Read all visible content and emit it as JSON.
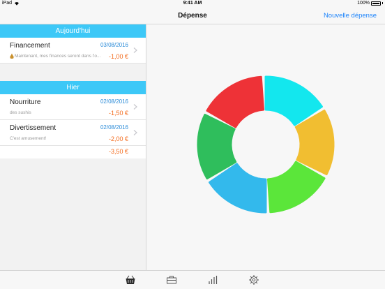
{
  "status_bar": {
    "device": "iPad",
    "time": "9:41 AM",
    "battery": "100%"
  },
  "nav": {
    "title": "Dépense",
    "action": "Nouvelle dépense"
  },
  "sections": [
    {
      "header": "Aujourd'hui",
      "rows": [
        {
          "title": "Financement",
          "date": "03/08/2016",
          "subtitle": "Maintenant, mes finances seront dans l'o...",
          "amount": "-1,00 €"
        }
      ]
    },
    {
      "header": "Hier",
      "rows": [
        {
          "title": "Nourriture",
          "date": "02/08/2016",
          "subtitle": "des sushis",
          "amount": "-1,50 €"
        },
        {
          "title": "Divertissement",
          "date": "02/08/2016",
          "subtitle": "C'est amusement!",
          "amount": "-2,00 €"
        }
      ],
      "total": "-3,50 €"
    }
  ],
  "donut": {
    "segments": [
      {
        "color": "#ee3237"
      },
      {
        "color": "#13e7ee"
      },
      {
        "color": "#f1be31"
      },
      {
        "color": "#5be63a"
      },
      {
        "color": "#33b9ec"
      },
      {
        "color": "#2fbe5c"
      }
    ]
  },
  "tabs": [
    {
      "icon": "basket-icon"
    },
    {
      "icon": "briefcase-icon"
    },
    {
      "icon": "bar-chart-icon"
    },
    {
      "icon": "gear-icon"
    }
  ]
}
